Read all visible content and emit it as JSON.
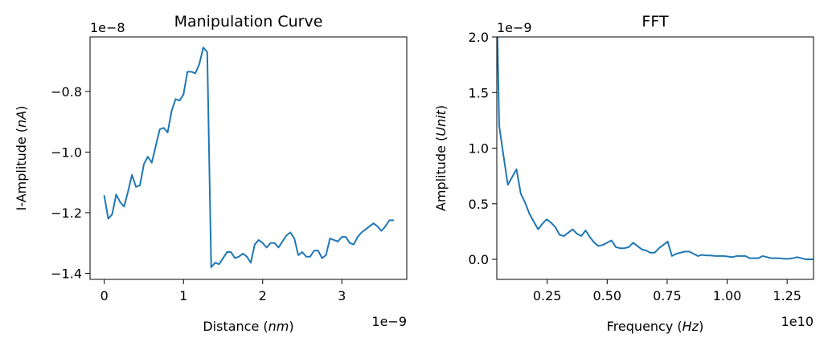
{
  "chart_data": [
    {
      "type": "line",
      "title": "Manipulation Curve",
      "xlabel": "Distance (nm)",
      "xlabel_parts": [
        "Distance (",
        "nm",
        ")"
      ],
      "ylabel": "I-Amplitude (nA)",
      "ylabel_parts": [
        "I-Amplitude (",
        "nA",
        ")"
      ],
      "x_offset_label": "1e−9",
      "y_offset_label": "1e−8",
      "xlim": [
        -0.18,
        3.82
      ],
      "ylim": [
        -1.42,
        -0.62
      ],
      "xticks": [
        0,
        1,
        2,
        3
      ],
      "xtick_labels": [
        "0",
        "1",
        "2",
        "3"
      ],
      "yticks": [
        -1.4,
        -1.2,
        -1.0,
        -0.8
      ],
      "ytick_labels": [
        "−1.4",
        "−1.2",
        "−1.0",
        "−0.8"
      ],
      "grid": false,
      "series": [
        {
          "x": [
            0.0,
            0.05,
            0.1,
            0.15,
            0.2,
            0.25,
            0.3,
            0.35,
            0.4,
            0.45,
            0.5,
            0.55,
            0.6,
            0.65,
            0.7,
            0.75,
            0.8,
            0.85,
            0.9,
            0.95,
            1.0,
            1.05,
            1.1,
            1.15,
            1.2,
            1.25,
            1.3,
            1.35,
            1.4,
            1.45,
            1.5,
            1.55,
            1.6,
            1.65,
            1.7,
            1.75,
            1.8,
            1.85,
            1.9,
            1.95,
            2.0,
            2.05,
            2.1,
            2.15,
            2.2,
            2.25,
            2.3,
            2.35,
            2.4,
            2.45,
            2.5,
            2.55,
            2.6,
            2.65,
            2.7,
            2.75,
            2.8,
            2.85,
            2.9,
            2.95,
            3.0,
            3.05,
            3.1,
            3.15,
            3.2,
            3.25,
            3.3,
            3.35,
            3.4,
            3.45,
            3.5,
            3.55,
            3.6,
            3.65
          ],
          "y": [
            -1.145,
            -1.22,
            -1.205,
            -1.14,
            -1.165,
            -1.18,
            -1.13,
            -1.075,
            -1.115,
            -1.11,
            -1.04,
            -1.015,
            -1.035,
            -0.98,
            -0.925,
            -0.92,
            -0.935,
            -0.865,
            -0.825,
            -0.83,
            -0.81,
            -0.735,
            -0.735,
            -0.74,
            -0.71,
            -0.655,
            -0.67,
            -1.38,
            -1.365,
            -1.37,
            -1.35,
            -1.33,
            -1.33,
            -1.35,
            -1.345,
            -1.335,
            -1.345,
            -1.365,
            -1.305,
            -1.29,
            -1.3,
            -1.315,
            -1.3,
            -1.3,
            -1.315,
            -1.295,
            -1.275,
            -1.265,
            -1.285,
            -1.34,
            -1.33,
            -1.345,
            -1.345,
            -1.325,
            -1.325,
            -1.35,
            -1.34,
            -1.285,
            -1.29,
            -1.295,
            -1.28,
            -1.28,
            -1.3,
            -1.305,
            -1.28,
            -1.265,
            -1.255,
            -1.245,
            -1.235,
            -1.245,
            -1.26,
            -1.245,
            -1.225,
            -1.225
          ]
        }
      ]
    },
    {
      "type": "line",
      "title": "FFT",
      "xlabel": "Frequency (Hz)",
      "xlabel_parts": [
        "Frequency (",
        "Hz",
        ")"
      ],
      "ylabel": "Amplitude (Unit)",
      "ylabel_parts": [
        "Amplitude (",
        "Unit",
        ")"
      ],
      "x_offset_label": "1e10",
      "y_offset_label": "1e−9",
      "xlim": [
        0.04,
        1.36
      ],
      "ylim": [
        -0.18,
        2.0
      ],
      "xticks": [
        0.25,
        0.5,
        0.75,
        1.0,
        1.25
      ],
      "xtick_labels": [
        "0.25",
        "0.50",
        "0.75",
        "1.00",
        "1.25"
      ],
      "yticks": [
        0.0,
        0.5,
        1.0,
        1.5,
        2.0
      ],
      "ytick_labels": [
        "0.0",
        "0.5",
        "1.0",
        "1.5",
        "2.0"
      ],
      "grid": false,
      "series": [
        {
          "x": [
            0.04,
            0.05,
            0.068,
            0.086,
            0.104,
            0.122,
            0.14,
            0.158,
            0.176,
            0.194,
            0.212,
            0.23,
            0.248,
            0.266,
            0.284,
            0.302,
            0.32,
            0.338,
            0.356,
            0.374,
            0.392,
            0.41,
            0.428,
            0.446,
            0.464,
            0.482,
            0.5,
            0.518,
            0.536,
            0.554,
            0.572,
            0.59,
            0.608,
            0.626,
            0.644,
            0.662,
            0.68,
            0.698,
            0.716,
            0.734,
            0.752,
            0.77,
            0.788,
            0.806,
            0.824,
            0.842,
            0.86,
            0.878,
            0.896,
            0.914,
            0.932,
            0.95,
            0.968,
            0.986,
            1.004,
            1.022,
            1.04,
            1.058,
            1.076,
            1.094,
            1.112,
            1.13,
            1.148,
            1.166,
            1.184,
            1.202,
            1.22,
            1.238,
            1.256,
            1.274,
            1.292,
            1.31,
            1.328,
            1.346,
            1.36
          ],
          "y": [
            2.3,
            1.2,
            0.93,
            0.67,
            0.74,
            0.81,
            0.59,
            0.51,
            0.41,
            0.34,
            0.27,
            0.32,
            0.36,
            0.33,
            0.29,
            0.22,
            0.21,
            0.24,
            0.27,
            0.23,
            0.21,
            0.26,
            0.2,
            0.15,
            0.12,
            0.13,
            0.15,
            0.17,
            0.11,
            0.1,
            0.1,
            0.11,
            0.15,
            0.12,
            0.09,
            0.08,
            0.06,
            0.06,
            0.1,
            0.13,
            0.16,
            0.03,
            0.05,
            0.06,
            0.07,
            0.07,
            0.05,
            0.03,
            0.04,
            0.035,
            0.035,
            0.03,
            0.03,
            0.03,
            0.025,
            0.02,
            0.03,
            0.03,
            0.03,
            0.01,
            0.01,
            0.01,
            0.03,
            0.02,
            0.01,
            0.01,
            0.01,
            0.005,
            0.005,
            0.01,
            0.02,
            0.01,
            0.0,
            0.0,
            0.0
          ]
        }
      ]
    }
  ]
}
